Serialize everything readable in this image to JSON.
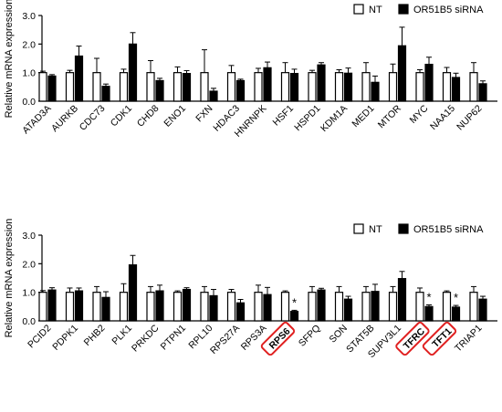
{
  "chart_data": [
    {
      "type": "bar",
      "ylabel": "Relative mRNA expression",
      "ylim": [
        0,
        3
      ],
      "yticks": [
        "0.0",
        "1.0",
        "2.0",
        "3.0"
      ],
      "categories": [
        "ATAD3A",
        "AURKB",
        "CDC73",
        "CDK1",
        "CHD8",
        "ENO1",
        "FXN",
        "HDAC3",
        "HNRNPK",
        "HSF1",
        "HSPD1",
        "KDM1A",
        "MED1",
        "MTOR",
        "MYC",
        "NAA15",
        "NUP62"
      ],
      "legend": {
        "position": "top-right",
        "entries": [
          {
            "label": "NT",
            "fill": "#ffffff"
          },
          {
            "label": "OR51B5 siRNA",
            "fill": "#000000"
          }
        ]
      },
      "series": [
        {
          "name": "NT",
          "values": [
            1.0,
            1.0,
            1.0,
            1.0,
            1.0,
            1.0,
            1.0,
            1.0,
            1.0,
            1.0,
            1.0,
            1.0,
            1.0,
            1.0,
            1.0,
            1.0,
            1.0
          ],
          "errors": [
            0.05,
            0.08,
            0.5,
            0.12,
            0.42,
            0.2,
            0.8,
            0.25,
            0.15,
            0.35,
            0.08,
            0.1,
            0.35,
            0.3,
            0.1,
            0.18,
            0.35
          ]
        },
        {
          "name": "OR51B5 siRNA",
          "values": [
            0.88,
            1.58,
            0.52,
            2.0,
            0.72,
            0.97,
            0.35,
            0.72,
            1.17,
            0.97,
            1.27,
            0.98,
            0.66,
            1.94,
            1.29,
            0.83,
            0.61
          ],
          "errors": [
            0.05,
            0.35,
            0.08,
            0.4,
            0.08,
            0.1,
            0.1,
            0.05,
            0.2,
            0.15,
            0.08,
            0.18,
            0.22,
            0.65,
            0.25,
            0.15,
            0.1
          ]
        }
      ],
      "significance": [],
      "highlighted": []
    },
    {
      "type": "bar",
      "ylabel": "Relative mRNA expression",
      "ylim": [
        0,
        3
      ],
      "yticks": [
        "0.0",
        "1.0",
        "2.0",
        "3.0"
      ],
      "categories": [
        "PCID2",
        "PDPK1",
        "PHB2",
        "PLK1",
        "PRKDC",
        "PTPN1",
        "RPL10",
        "RPS27A",
        "RPS3A",
        "RPS6",
        "SFPQ",
        "SON",
        "STAT5B",
        "SUPV3L1",
        "TFRC",
        "TFT1",
        "TRIAP1"
      ],
      "legend": {
        "position": "top-right",
        "entries": [
          {
            "label": "NT",
            "fill": "#ffffff"
          },
          {
            "label": "OR51B5 siRNA",
            "fill": "#000000"
          }
        ]
      },
      "series": [
        {
          "name": "NT",
          "values": [
            1.0,
            1.0,
            1.0,
            1.0,
            1.0,
            1.0,
            1.0,
            1.0,
            1.0,
            1.0,
            1.0,
            1.0,
            1.0,
            1.0,
            1.0,
            1.0,
            1.0
          ],
          "errors": [
            0.06,
            0.15,
            0.2,
            0.3,
            0.2,
            0.05,
            0.2,
            0.1,
            0.25,
            0.05,
            0.2,
            0.2,
            0.2,
            0.2,
            0.15,
            0.05,
            0.2
          ]
        },
        {
          "name": "OR51B5 siRNA",
          "values": [
            1.08,
            1.05,
            0.82,
            1.96,
            1.05,
            1.1,
            0.88,
            0.63,
            0.92,
            0.33,
            1.08,
            0.76,
            1.03,
            1.48,
            0.5,
            0.48,
            0.76
          ]
        },
        {
          "name": "_err2",
          "values": [
            0.08,
            0.1,
            0.2,
            0.33,
            0.2,
            0.06,
            0.22,
            0.12,
            0.25,
            0.04,
            0.06,
            0.1,
            0.25,
            0.25,
            0.06,
            0.06,
            0.1
          ]
        }
      ],
      "significance": [
        "RPS6",
        "TFRC",
        "TFT1"
      ],
      "significance_mark": "*",
      "highlighted": [
        "RPS6",
        "TFRC",
        "TFT1"
      ],
      "highlight_color": "#e02020"
    }
  ]
}
